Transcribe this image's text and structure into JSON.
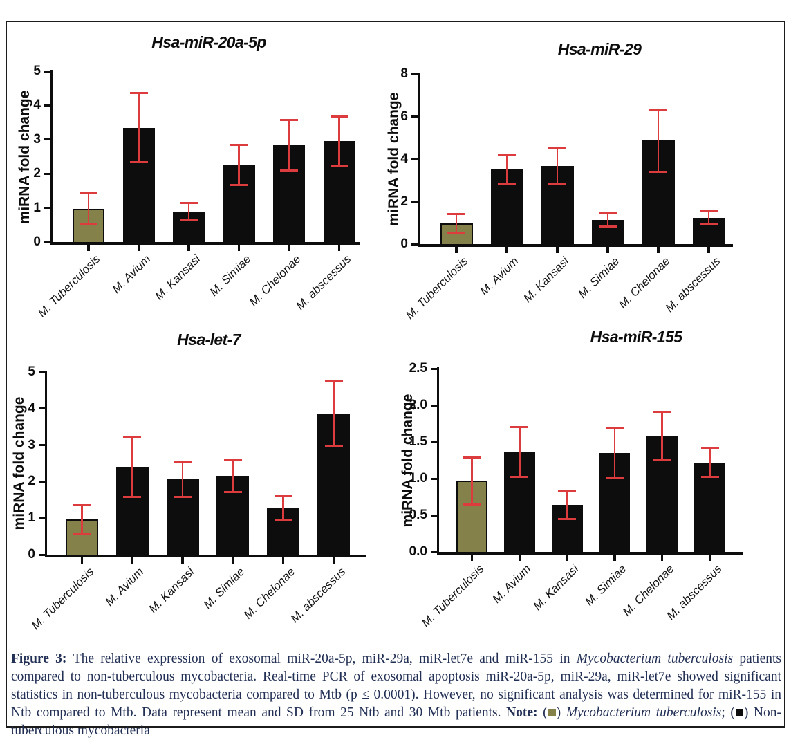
{
  "colors": {
    "mtb_bar": "#85814a",
    "ntb_bar": "#0d0d0d",
    "error_bar": "#dd3c3e",
    "axis": "#0d0d0d",
    "caption_text": "#233055"
  },
  "chart_data": [
    {
      "type": "bar",
      "title": "Hsa-miR-20a-5p",
      "ylabel": "miRNA fold change",
      "categories": [
        "M. Tuberculosis",
        "M. Avium",
        "M. Kansasi",
        "M. Simiae",
        "M. Chelonae",
        "M. abscessus"
      ],
      "values": [
        0.98,
        3.35,
        0.9,
        2.26,
        2.83,
        2.96
      ],
      "errors": [
        0.46,
        1.01,
        0.25,
        0.58,
        0.74,
        0.72
      ],
      "ylim": [
        0,
        5
      ],
      "yticks": [
        0,
        1,
        2,
        3,
        4,
        5
      ],
      "ytick_labels": [
        "0",
        "1",
        "2",
        "3",
        "4",
        "5"
      ],
      "highlight_index": 0,
      "grid": false,
      "legend": "none"
    },
    {
      "type": "bar",
      "title": "Hsa-miR-29",
      "ylabel": "miRNA fold change",
      "categories": [
        "M. Tuberculosis",
        "M. Avium",
        "M. Kansasi",
        "M. Simiae",
        "M. Chelonae",
        "M. abscessus"
      ],
      "values": [
        0.97,
        3.51,
        3.66,
        1.15,
        4.87,
        1.24
      ],
      "errors": [
        0.45,
        0.71,
        0.83,
        0.31,
        1.47,
        0.31
      ],
      "ylim": [
        0,
        8
      ],
      "yticks": [
        0,
        2,
        4,
        6,
        8
      ],
      "ytick_labels": [
        "0",
        "2",
        "4",
        "6",
        "8"
      ],
      "highlight_index": 0,
      "grid": false,
      "legend": "none"
    },
    {
      "type": "bar",
      "title": "Hsa-let-7",
      "ylabel": "miRNA fold change",
      "categories": [
        "M. Tuberculosis",
        "M. Avium",
        "M. Kansasi",
        "M. Simiae",
        "M. Chelonae",
        "M. abscessus"
      ],
      "values": [
        0.97,
        2.41,
        2.06,
        2.16,
        1.27,
        3.86
      ],
      "errors": [
        0.39,
        0.82,
        0.47,
        0.44,
        0.33,
        0.88
      ],
      "ylim": [
        0,
        5
      ],
      "yticks": [
        0,
        1,
        2,
        3,
        4,
        5
      ],
      "ytick_labels": [
        "0",
        "1",
        "2",
        "3",
        "4",
        "5"
      ],
      "highlight_index": 0,
      "grid": false,
      "legend": "none"
    },
    {
      "type": "bar",
      "title": "Hsa-miR-155",
      "ylabel": "miRNA fold change",
      "categories": [
        "M. Tuberculosis",
        "M. Avium",
        "M. Kansasi",
        "M. Simiae",
        "M. Chelonae",
        "M. abscessus"
      ],
      "values": [
        0.97,
        1.36,
        0.64,
        1.35,
        1.58,
        1.22
      ],
      "errors": [
        0.32,
        0.34,
        0.19,
        0.34,
        0.33,
        0.2
      ],
      "ylim": [
        0,
        2.5
      ],
      "yticks": [
        0,
        0.5,
        1,
        1.5,
        2,
        2.5
      ],
      "ytick_labels": [
        "0.0",
        "0.5",
        "1.0",
        "1.5",
        "2.0",
        "2.5"
      ],
      "highlight_index": 0,
      "grid": false,
      "legend": "none"
    }
  ],
  "caption": {
    "segments": [
      {
        "t": "Figure 3: ",
        "b": true
      },
      {
        "t": "The relative expression of exosomal miR-20a-5p, miR-29a, miR-let7e and miR-155 in "
      },
      {
        "t": "Mycobacterium tuberculosis",
        "i": true
      },
      {
        "t": " patients compared to non-tuberculous mycobacteria. Real-time PCR of exosomal apoptosis miR-20a-5p, miR-29a, miR-let7e showed significant statistics in non-tuberculous mycobacteria compared to Mtb (p ≤ 0.0001). However, no significant analysis was determined for miR-155 in Ntb compared to Mtb. Data represent mean and SD from 25 Ntb and 30 Mtb patients. "
      },
      {
        "t": "Note: ",
        "b": true
      },
      {
        "t": "("
      },
      {
        "swatch": "mtb"
      },
      {
        "t": ") "
      },
      {
        "t": "Mycobacterium tuberculosis",
        "i": true
      },
      {
        "t": "; ("
      },
      {
        "swatch": "ntb"
      },
      {
        "t": ") Non-tuberculous mycobacteria"
      }
    ]
  }
}
